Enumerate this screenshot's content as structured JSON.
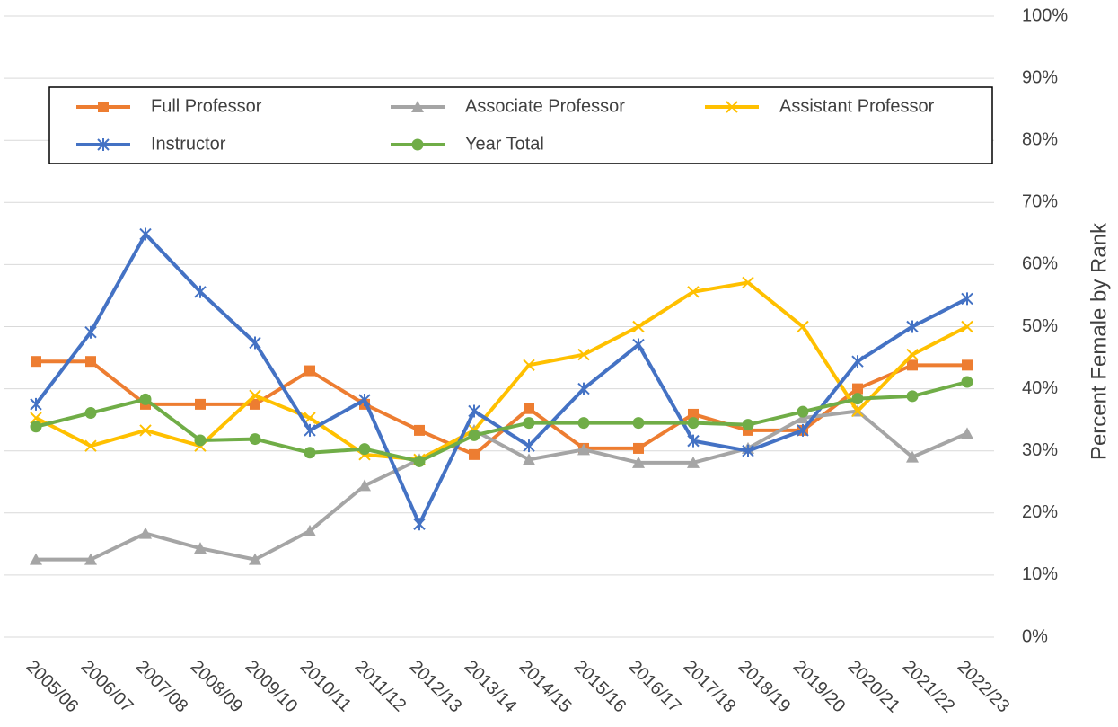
{
  "chart_data": {
    "type": "line",
    "y_axis_label": "Percent Female by Rank",
    "categories": [
      "2005/06",
      "2006/07",
      "2007/08",
      "2008/09",
      "2009/10",
      "2010/11",
      "2011/12",
      "2012/13",
      "2013/14",
      "2014/15",
      "2015/16",
      "2016/17",
      "2017/18",
      "2018/19",
      "2019/20",
      "2020/21",
      "2021/22",
      "2022/23"
    ],
    "series": [
      {
        "name": "Full Professor",
        "color": "#ed7d31",
        "marker": "square",
        "values": [
          44.4,
          44.4,
          37.5,
          37.5,
          37.5,
          42.9,
          37.5,
          33.3,
          29.4,
          36.8,
          30.4,
          30.4,
          35.9,
          33.3,
          33.3,
          40,
          43.8,
          43.8
        ]
      },
      {
        "name": "Associate Professor",
        "color": "#a5a5a5",
        "marker": "triangle",
        "values": [
          12.5,
          12.5,
          16.7,
          14.3,
          12.5,
          17.1,
          24.4,
          28.6,
          33.3,
          28.6,
          30.2,
          28.1,
          28.1,
          30.4,
          35.3,
          36.4,
          29.0,
          32.8
        ]
      },
      {
        "name": "Assistant Professor",
        "color": "#ffc000",
        "marker": "x",
        "values": [
          35.3,
          30.8,
          33.3,
          30.8,
          38.9,
          35.3,
          29.4,
          28.6,
          33.3,
          43.8,
          45.5,
          50,
          55.6,
          57.1,
          50,
          36.4,
          45.5,
          50
        ]
      },
      {
        "name": "Instructor",
        "color": "#4472c4",
        "marker": "star",
        "values": [
          37.5,
          49.1,
          64.9,
          55.6,
          47.4,
          33.3,
          38.2,
          18.2,
          36.4,
          30.8,
          40,
          47.1,
          31.6,
          30,
          33.3,
          44.4,
          50,
          54.5
        ]
      },
      {
        "name": "Year Total",
        "color": "#70ad47",
        "marker": "circle",
        "values": [
          33.9,
          36.1,
          38.3,
          31.7,
          31.9,
          29.7,
          30.3,
          28.3,
          32.5,
          34.5,
          34.5,
          34.5,
          34.5,
          34.2,
          36.3,
          38.4,
          38.8,
          41.1
        ]
      }
    ],
    "ylim": [
      0,
      100
    ],
    "yticks": [
      {
        "value": 0,
        "label": "0%"
      },
      {
        "value": 10,
        "label": "10%"
      },
      {
        "value": 20,
        "label": "20%"
      },
      {
        "value": 30,
        "label": "30%"
      },
      {
        "value": 40,
        "label": "40%"
      },
      {
        "value": 50,
        "label": "50%"
      },
      {
        "value": 60,
        "label": "60%"
      },
      {
        "value": 70,
        "label": "70%"
      },
      {
        "value": 80,
        "label": "80%"
      },
      {
        "value": 90,
        "label": "90%"
      },
      {
        "value": 100,
        "label": "100%"
      }
    ],
    "grid": true,
    "y_axis_side": "right"
  }
}
